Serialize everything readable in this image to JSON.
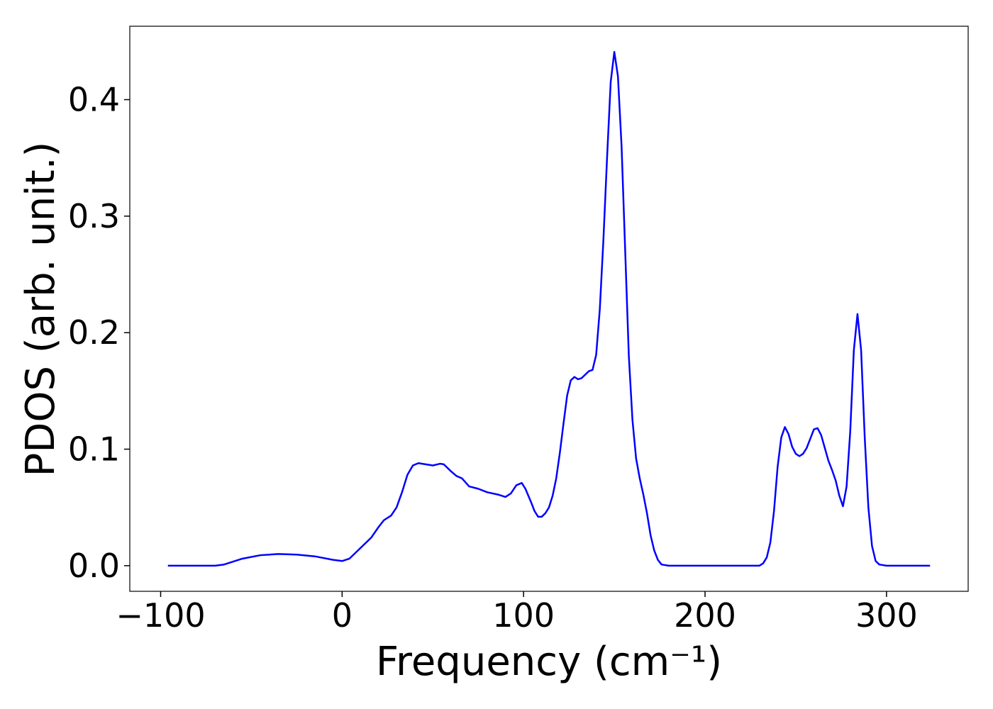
{
  "chart_data": {
    "type": "line",
    "xlabel": "Frequency (cm⁻¹)",
    "ylabel": "PDOS (arb. unit.)",
    "xlim": [
      -117,
      345
    ],
    "ylim": [
      -0.022,
      0.463
    ],
    "xticks": [
      {
        "value": -100,
        "label": "−100"
      },
      0,
      100,
      200,
      300
    ],
    "yticks": [
      {
        "value": 0,
        "label": "0.0"
      },
      0.1,
      0.2,
      0.3,
      0.4
    ],
    "x": [
      -96,
      -70,
      -65,
      -55,
      -45,
      -35,
      -25,
      -15,
      -5,
      0,
      4,
      8,
      12,
      16,
      20,
      23,
      27,
      30,
      33,
      36,
      39,
      42,
      46,
      50,
      54,
      56,
      60,
      63,
      66,
      70,
      75,
      80,
      86,
      90,
      93,
      96,
      99,
      101,
      104,
      106,
      108,
      110,
      112,
      114,
      116,
      118,
      120,
      122,
      124,
      126,
      128,
      130,
      132,
      134,
      136,
      138,
      140,
      142,
      144,
      146,
      148,
      150,
      152,
      154,
      156,
      158,
      160,
      162,
      164,
      166,
      168,
      170,
      172,
      174,
      176,
      180,
      230,
      232,
      234,
      236,
      238,
      240,
      242,
      244,
      246,
      248,
      250,
      252,
      254,
      256,
      258,
      260,
      262,
      264,
      266,
      268,
      270,
      272,
      274,
      276,
      278,
      280,
      282,
      284,
      286,
      288,
      290,
      292,
      294,
      296,
      300,
      324
    ],
    "series": [
      {
        "color": "#0000ff",
        "values": [
          0,
          0,
          0.001,
          0.006,
          0.009,
          0.01,
          0.0095,
          0.008,
          0.005,
          0.004,
          0.006,
          0.012,
          0.018,
          0.024,
          0.033,
          0.039,
          0.043,
          0.05,
          0.063,
          0.078,
          0.086,
          0.088,
          0.087,
          0.086,
          0.0875,
          0.087,
          0.081,
          0.077,
          0.075,
          0.068,
          0.066,
          0.063,
          0.061,
          0.059,
          0.062,
          0.069,
          0.071,
          0.066,
          0.055,
          0.047,
          0.042,
          0.042,
          0.045,
          0.05,
          0.06,
          0.075,
          0.097,
          0.122,
          0.146,
          0.159,
          0.162,
          0.16,
          0.161,
          0.164,
          0.167,
          0.168,
          0.181,
          0.22,
          0.28,
          0.35,
          0.415,
          0.441,
          0.42,
          0.36,
          0.27,
          0.18,
          0.125,
          0.092,
          0.075,
          0.061,
          0.045,
          0.026,
          0.013,
          0.005,
          0.001,
          0,
          0,
          0.002,
          0.007,
          0.02,
          0.047,
          0.085,
          0.11,
          0.119,
          0.113,
          0.102,
          0.096,
          0.094,
          0.096,
          0.101,
          0.109,
          0.117,
          0.118,
          0.112,
          0.101,
          0.09,
          0.082,
          0.073,
          0.06,
          0.051,
          0.068,
          0.115,
          0.185,
          0.216,
          0.185,
          0.11,
          0.05,
          0.017,
          0.004,
          0.001,
          0,
          0
        ]
      }
    ]
  }
}
